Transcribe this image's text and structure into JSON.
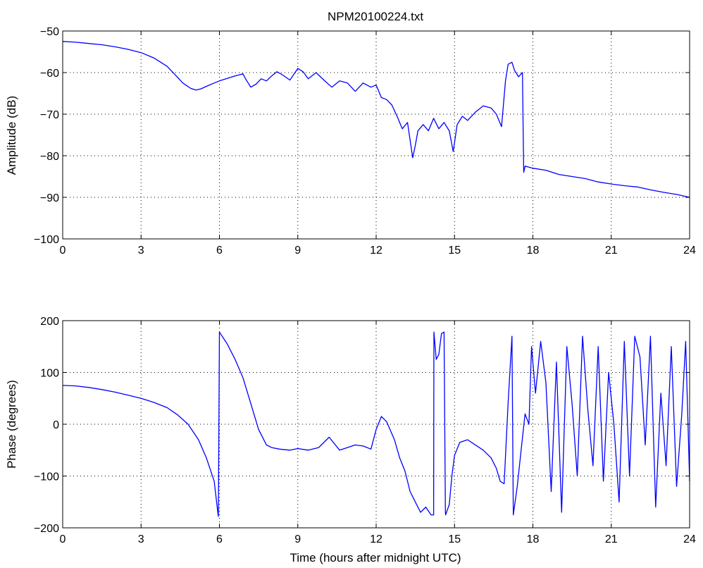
{
  "chart_data": [
    {
      "type": "line",
      "title": "NPM20100224.txt",
      "xlabel": "",
      "ylabel": "Amplitude (dB)",
      "xlim": [
        0,
        24
      ],
      "ylim": [
        -100,
        -50
      ],
      "xticks": [
        0,
        3,
        6,
        9,
        12,
        15,
        18,
        21,
        24
      ],
      "yticks": [
        -100,
        -90,
        -80,
        -70,
        -60,
        -50
      ],
      "xtick_labels": [
        "0",
        "3",
        "6",
        "9",
        "12",
        "15",
        "18",
        "21",
        "24"
      ],
      "ytick_labels": [
        "−100",
        "−90",
        "−80",
        "−70",
        "−60",
        "−50"
      ],
      "grid": true,
      "line_color": "#0000ff",
      "series": [
        {
          "x": [
            0,
            0.5,
            1.0,
            1.5,
            2.0,
            2.5,
            3.0,
            3.5,
            4.0,
            4.3,
            4.6,
            4.9,
            5.1,
            5.3,
            5.5,
            5.8,
            6.0,
            6.3,
            6.6,
            6.9,
            7.0,
            7.2,
            7.4,
            7.6,
            7.8,
            8.0,
            8.2,
            8.4,
            8.7,
            9.0,
            9.2,
            9.4,
            9.7,
            10.0,
            10.3,
            10.6,
            10.9,
            11.2,
            11.5,
            11.8,
            12.0,
            12.2,
            12.4,
            12.6,
            12.8,
            13.0,
            13.2,
            13.4,
            13.5,
            13.6,
            13.8,
            14.0,
            14.2,
            14.4,
            14.6,
            14.8,
            14.95,
            15.1,
            15.3,
            15.5,
            15.8,
            16.1,
            16.4,
            16.6,
            16.8,
            16.95,
            17.05,
            17.2,
            17.3,
            17.45,
            17.6,
            17.62,
            17.65,
            17.7,
            18.0,
            18.5,
            19.0,
            19.5,
            20.0,
            20.5,
            21.0,
            21.5,
            22.0,
            22.5,
            23.0,
            23.5,
            24.0
          ],
          "y": [
            -52.5,
            -52.7,
            -53.0,
            -53.3,
            -53.8,
            -54.4,
            -55.2,
            -56.5,
            -58.5,
            -60.5,
            -62.5,
            -63.8,
            -64.2,
            -63.9,
            -63.3,
            -62.5,
            -62.0,
            -61.4,
            -60.8,
            -60.3,
            -61.5,
            -63.5,
            -62.8,
            -61.5,
            -62.0,
            -60.8,
            -59.8,
            -60.5,
            -61.8,
            -59.0,
            -59.8,
            -61.5,
            -60.0,
            -61.8,
            -63.5,
            -62.0,
            -62.5,
            -64.5,
            -62.5,
            -63.5,
            -63.0,
            -66.0,
            -66.5,
            -67.8,
            -70.5,
            -73.5,
            -72.0,
            -80.5,
            -77.5,
            -74.0,
            -72.5,
            -74.0,
            -71.0,
            -73.5,
            -72.0,
            -74.0,
            -79.0,
            -72.5,
            -70.5,
            -71.5,
            -69.5,
            -68.0,
            -68.5,
            -70.0,
            -73.0,
            -62.0,
            -58.0,
            -57.5,
            -59.5,
            -61.0,
            -60.0,
            -70.0,
            -84.0,
            -82.5,
            -83.0,
            -83.5,
            -84.5,
            -85.0,
            -85.5,
            -86.3,
            -86.8,
            -87.2,
            -87.5,
            -88.2,
            -88.8,
            -89.3,
            -90.0
          ]
        }
      ]
    },
    {
      "type": "line",
      "title": "",
      "xlabel": "Time (hours after midnight UTC)",
      "ylabel": "Phase (degrees)",
      "xlim": [
        0,
        24
      ],
      "ylim": [
        -200,
        200
      ],
      "xticks": [
        0,
        3,
        6,
        9,
        12,
        15,
        18,
        21,
        24
      ],
      "yticks": [
        -200,
        -100,
        0,
        100,
        200
      ],
      "xtick_labels": [
        "0",
        "3",
        "6",
        "9",
        "12",
        "15",
        "18",
        "21",
        "24"
      ],
      "ytick_labels": [
        "−200",
        "−100",
        "0",
        "100",
        "200"
      ],
      "grid": true,
      "line_color": "#0000ff",
      "series": [
        {
          "x": [
            0,
            0.5,
            1.0,
            1.5,
            2.0,
            2.5,
            3.0,
            3.5,
            4.0,
            4.4,
            4.8,
            5.2,
            5.5,
            5.8,
            5.95,
            5.96,
            6.0,
            6.3,
            6.6,
            6.9,
            7.2,
            7.5,
            7.8,
            8.0,
            8.3,
            8.7,
            9.0,
            9.4,
            9.8,
            10.2,
            10.6,
            10.9,
            11.2,
            11.5,
            11.8,
            12.0,
            12.2,
            12.4,
            12.7,
            12.9,
            13.1,
            13.3,
            13.5,
            13.7,
            13.9,
            14.1,
            14.2,
            14.21,
            14.3,
            14.4,
            14.5,
            14.6,
            14.65,
            14.66,
            14.8,
            14.9,
            15.0,
            15.2,
            15.5,
            15.8,
            16.1,
            16.4,
            16.6,
            16.75,
            16.9,
            17.05,
            17.2,
            17.25,
            17.4,
            17.55,
            17.7,
            17.85,
            17.95,
            18.1,
            18.3,
            18.5,
            18.7,
            18.9,
            19.1,
            19.3,
            19.5,
            19.7,
            19.9,
            20.1,
            20.3,
            20.5,
            20.7,
            20.9,
            21.1,
            21.3,
            21.5,
            21.7,
            21.9,
            22.1,
            22.3,
            22.5,
            22.7,
            22.9,
            23.1,
            23.3,
            23.5,
            23.7,
            23.85,
            24.0
          ],
          "y": [
            75,
            74,
            71,
            67,
            62,
            56,
            50,
            42,
            32,
            18,
            0,
            -30,
            -65,
            -110,
            -175,
            -178,
            178,
            155,
            125,
            90,
            40,
            -10,
            -40,
            -45,
            -48,
            -50,
            -47,
            -50,
            -45,
            -25,
            -50,
            -45,
            -40,
            -42,
            -48,
            -10,
            15,
            5,
            -30,
            -65,
            -90,
            -130,
            -150,
            -170,
            -160,
            -175,
            -175,
            178,
            125,
            135,
            175,
            178,
            -170,
            -175,
            -155,
            -100,
            -60,
            -35,
            -30,
            -40,
            -50,
            -65,
            -85,
            -110,
            -115,
            40,
            170,
            -175,
            -120,
            -50,
            20,
            0,
            150,
            60,
            160,
            80,
            -130,
            120,
            -170,
            150,
            40,
            -100,
            170,
            30,
            -80,
            150,
            -110,
            100,
            0,
            -150,
            160,
            -100,
            170,
            130,
            -40,
            170,
            -160,
            60,
            -80,
            150,
            -120,
            20,
            160,
            -110
          ]
        }
      ]
    }
  ]
}
